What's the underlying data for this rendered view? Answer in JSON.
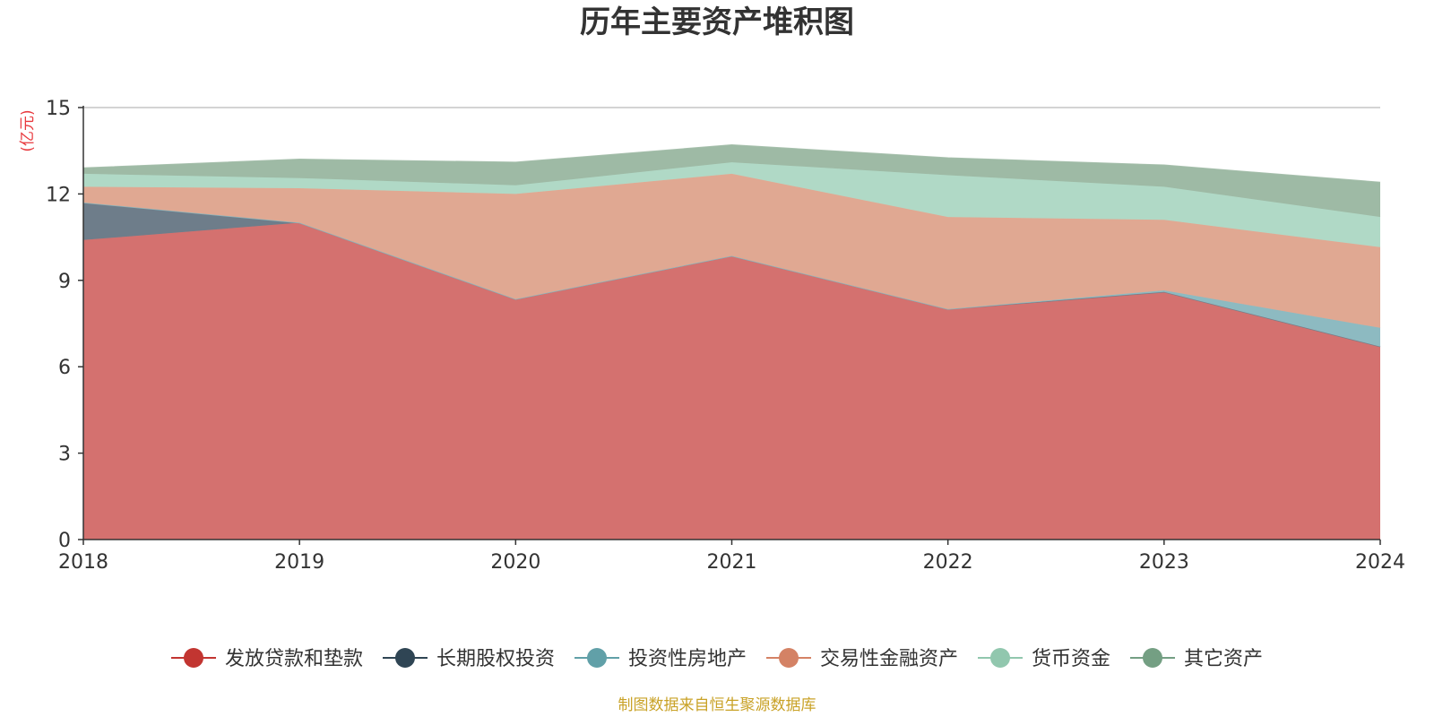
{
  "chart_data": {
    "type": "area",
    "stacked": true,
    "title": "历年主要资产堆积图",
    "unit_label": "(亿元)",
    "x": [
      "2018",
      "2019",
      "2020",
      "2021",
      "2022",
      "2023",
      "2024"
    ],
    "ylim": [
      0,
      15
    ],
    "yticks": [
      "0",
      "3",
      "6",
      "9",
      "12",
      "15"
    ],
    "grid": true,
    "legend_position": "bottom",
    "series": [
      {
        "name": "发放贷款和垫款",
        "color": "#c23531",
        "area_color": "#d4716f",
        "values": [
          10.4,
          11.0,
          8.35,
          9.85,
          8.0,
          8.6,
          6.7
        ]
      },
      {
        "name": "长期股权投资",
        "color": "#2f4554",
        "area_color": "#6e7d8a",
        "values": [
          1.3,
          0.0,
          0.0,
          0.0,
          0.0,
          0.0,
          0.0
        ]
      },
      {
        "name": "投资性房地产",
        "color": "#61a0a8",
        "area_color": "#8dbac1",
        "values": [
          0.0,
          0.0,
          0.0,
          0.0,
          0.0,
          0.05,
          0.65
        ]
      },
      {
        "name": "交易性金融资产",
        "color": "#d48265",
        "area_color": "#e0a892",
        "values": [
          0.55,
          1.2,
          3.65,
          2.85,
          3.2,
          2.45,
          2.8
        ]
      },
      {
        "name": "货币资金",
        "color": "#91c7ae",
        "area_color": "#b0d9c6",
        "values": [
          0.45,
          0.35,
          0.3,
          0.4,
          1.45,
          1.15,
          1.05
        ]
      },
      {
        "name": "其它资产",
        "color": "#749f83",
        "area_color": "#9ebaa5",
        "values": [
          0.2,
          0.65,
          0.8,
          0.6,
          0.6,
          0.75,
          1.2
        ]
      }
    ]
  },
  "footer": {
    "source": "制图数据来自恒生聚源数据库"
  }
}
